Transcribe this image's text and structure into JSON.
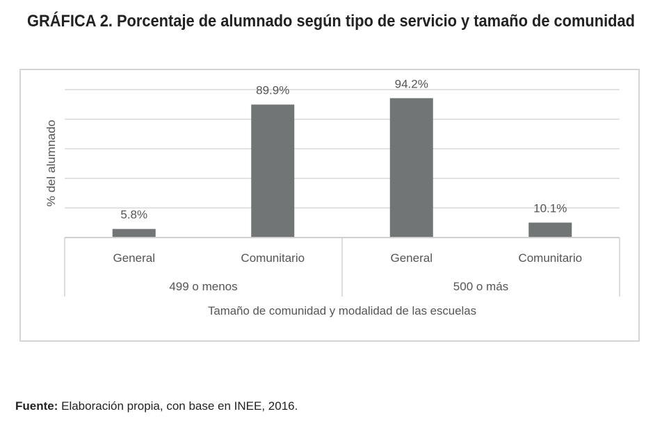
{
  "title": "GRÁFICA 2. Porcentaje de alumnado según tipo de servicio y tamaño de comunidad",
  "source": {
    "label": "Fuente:",
    "text": " Elaboración propia, con base en INEE, 2016."
  },
  "chart_data": {
    "type": "bar",
    "title": "",
    "ylabel": "% del alumnado",
    "xlabel": "Tamaño de comunidad y modalidad de las escuelas",
    "ylim": [
      0,
      100
    ],
    "gridlines": [
      20,
      40,
      60,
      80,
      100
    ],
    "grid": true,
    "bar_color": "#717575",
    "groups": [
      "499 o menos",
      "500 o más"
    ],
    "categories": [
      "General",
      "Comunitario",
      "General",
      "Comunitario"
    ],
    "values": [
      5.8,
      89.9,
      94.2,
      10.1
    ],
    "data_labels": [
      "5.8%",
      "89.9%",
      "94.2%",
      "10.1%"
    ]
  }
}
